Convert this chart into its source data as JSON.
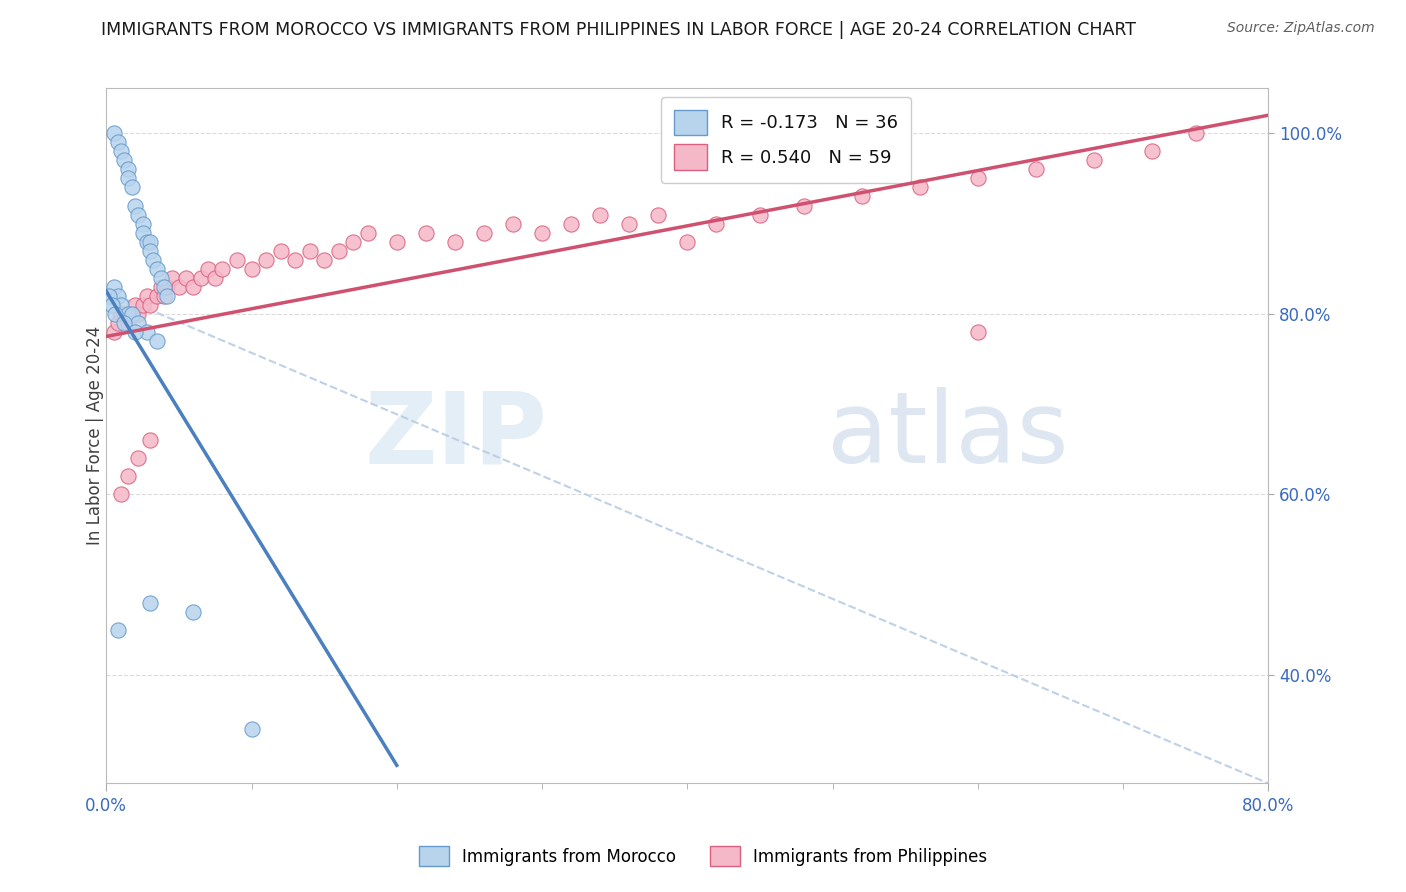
{
  "title": "IMMIGRANTS FROM MOROCCO VS IMMIGRANTS FROM PHILIPPINES IN LABOR FORCE | AGE 20-24 CORRELATION CHART",
  "source": "Source: ZipAtlas.com",
  "ylabel": "In Labor Force | Age 20-24",
  "r_morocco": -0.173,
  "n_morocco": 36,
  "r_philippines": 0.54,
  "n_philippines": 59,
  "color_morocco_fill": "#b8d4ed",
  "color_morocco_edge": "#6699cc",
  "color_philippines_fill": "#f5b8c8",
  "color_philippines_edge": "#d96080",
  "trendline_morocco": "#4a7fc0",
  "trendline_philippines": "#d05070",
  "ref_line_color": "#b8cce4",
  "background_color": "#ffffff",
  "grid_color": "#cccccc",
  "watermark_zip_color": "#d8e8f4",
  "watermark_atlas_color": "#c8d8e8",
  "xlim": [
    0.0,
    0.8
  ],
  "ylim": [
    0.28,
    1.05
  ],
  "x_tick_positions": [
    0.0,
    0.8
  ],
  "x_tick_labels": [
    "0.0%",
    "80.0%"
  ],
  "y_ticks": [
    0.4,
    0.6,
    0.8,
    1.0
  ],
  "y_tick_labels": [
    "40.0%",
    "60.0%",
    "80.0%",
    "100.0%"
  ],
  "morocco_x": [
    0.005,
    0.008,
    0.01,
    0.012,
    0.015,
    0.015,
    0.018,
    0.02,
    0.022,
    0.025,
    0.025,
    0.028,
    0.03,
    0.03,
    0.032,
    0.035,
    0.038,
    0.04,
    0.042,
    0.005,
    0.008,
    0.01,
    0.015,
    0.018,
    0.022,
    0.028,
    0.035,
    0.002,
    0.004,
    0.006,
    0.012,
    0.02,
    0.008,
    0.06,
    0.1,
    0.03
  ],
  "morocco_y": [
    1.0,
    0.99,
    0.98,
    0.97,
    0.96,
    0.95,
    0.94,
    0.92,
    0.91,
    0.9,
    0.89,
    0.88,
    0.88,
    0.87,
    0.86,
    0.85,
    0.84,
    0.83,
    0.82,
    0.83,
    0.82,
    0.81,
    0.8,
    0.8,
    0.79,
    0.78,
    0.77,
    0.82,
    0.81,
    0.8,
    0.79,
    0.78,
    0.45,
    0.47,
    0.34,
    0.48
  ],
  "philippines_x": [
    0.005,
    0.008,
    0.01,
    0.012,
    0.015,
    0.018,
    0.02,
    0.022,
    0.025,
    0.028,
    0.03,
    0.035,
    0.038,
    0.04,
    0.042,
    0.045,
    0.05,
    0.055,
    0.06,
    0.065,
    0.07,
    0.075,
    0.08,
    0.09,
    0.1,
    0.11,
    0.12,
    0.13,
    0.14,
    0.15,
    0.16,
    0.17,
    0.18,
    0.2,
    0.22,
    0.24,
    0.26,
    0.28,
    0.3,
    0.32,
    0.34,
    0.36,
    0.38,
    0.4,
    0.42,
    0.45,
    0.48,
    0.52,
    0.56,
    0.6,
    0.64,
    0.68,
    0.72,
    0.01,
    0.015,
    0.022,
    0.03,
    0.6,
    0.75
  ],
  "philippines_y": [
    0.78,
    0.79,
    0.8,
    0.8,
    0.79,
    0.8,
    0.81,
    0.8,
    0.81,
    0.82,
    0.81,
    0.82,
    0.83,
    0.82,
    0.83,
    0.84,
    0.83,
    0.84,
    0.83,
    0.84,
    0.85,
    0.84,
    0.85,
    0.86,
    0.85,
    0.86,
    0.87,
    0.86,
    0.87,
    0.86,
    0.87,
    0.88,
    0.89,
    0.88,
    0.89,
    0.88,
    0.89,
    0.9,
    0.89,
    0.9,
    0.91,
    0.9,
    0.91,
    0.88,
    0.9,
    0.91,
    0.92,
    0.93,
    0.94,
    0.95,
    0.96,
    0.97,
    0.98,
    0.6,
    0.62,
    0.64,
    0.66,
    0.78,
    1.0
  ],
  "trendline_morocco_x0": 0.0,
  "trendline_morocco_y0": 0.825,
  "trendline_morocco_x1": 0.2,
  "trendline_morocco_y1": 0.3,
  "trendline_phil_x0": 0.0,
  "trendline_phil_y0": 0.775,
  "trendline_phil_x1": 0.8,
  "trendline_phil_y1": 1.02,
  "ref_line_x0": 0.0,
  "ref_line_y0": 0.825,
  "ref_line_x1": 0.8,
  "ref_line_y1": 0.28
}
